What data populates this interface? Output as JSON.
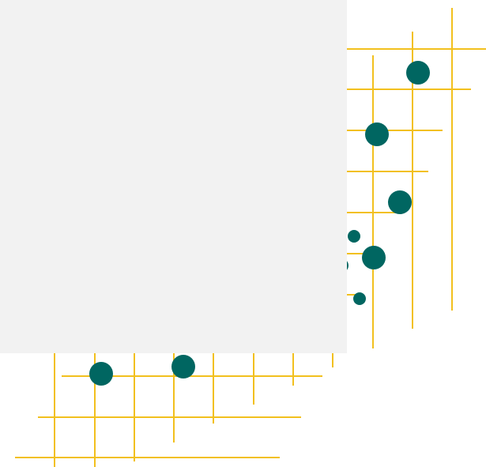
{
  "colors": {
    "background": "#ffffff",
    "grid_line": "#f2c01e",
    "dot": "#006661",
    "panel": "#f2f2f2"
  },
  "graphic": {
    "description_visible_text": "",
    "line_count": 20,
    "dot_count": 9
  }
}
